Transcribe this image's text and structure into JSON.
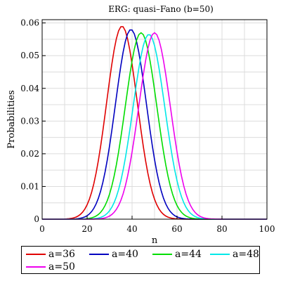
{
  "chart_data": {
    "type": "line",
    "title": "ERG: quasi–Fano (b=50)",
    "xlabel": "n",
    "ylabel": "Probabilities",
    "xlim": [
      0,
      100
    ],
    "ylim": [
      0,
      0.061
    ],
    "xticks": [
      0,
      20,
      40,
      60,
      80,
      100
    ],
    "yticks": [
      0,
      0.01,
      0.02,
      0.03,
      0.04,
      0.05,
      0.06
    ],
    "ytick_labels": [
      "0",
      "0.01",
      "0.02",
      "0.03",
      "0.04",
      "0.05",
      "0.06"
    ],
    "grid": true,
    "legend_position": "bottom",
    "series": [
      {
        "name": "a=36",
        "color": "#e00000",
        "peak_x": 35.5,
        "peak_y": 0.059,
        "sigma": 6.8,
        "x_range": [
          0,
          100
        ]
      },
      {
        "name": "a=40",
        "color": "#0000c0",
        "peak_x": 39.5,
        "peak_y": 0.058,
        "sigma": 6.9,
        "x_range": [
          0,
          100
        ]
      },
      {
        "name": "a=44",
        "color": "#00dd00",
        "peak_x": 44,
        "peak_y": 0.057,
        "sigma": 7.0,
        "x_range": [
          0,
          100
        ]
      },
      {
        "name": "a=48",
        "color": "#00e8e8",
        "peak_x": 47.5,
        "peak_y": 0.0565,
        "sigma": 7.05,
        "x_range": [
          0,
          100
        ]
      },
      {
        "name": "a=50",
        "color": "#ee00ee",
        "peak_x": 50,
        "peak_y": 0.057,
        "sigma": 7.0,
        "x_range": [
          0,
          100
        ]
      }
    ]
  }
}
